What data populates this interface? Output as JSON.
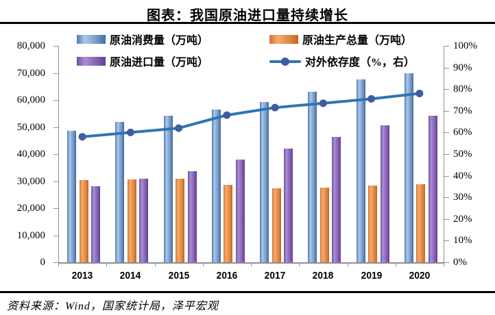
{
  "title": "图表：我国原油进口量持续增长",
  "source": "资料来源：Wind，国家统计局，泽平宏观",
  "legend": {
    "items": [
      {
        "label": "原油消费量（万吨）",
        "swatch": "blue"
      },
      {
        "label": "原油生产总量（万吨）",
        "swatch": "orange"
      },
      {
        "label": "原油进口量（万吨）",
        "swatch": "purple"
      },
      {
        "label": "对外依存度（%，右）",
        "swatch": "line"
      }
    ]
  },
  "colors": {
    "bar_blue": "#6d94c6",
    "bar_orange": "#e28a4a",
    "bar_purple": "#8763b4",
    "line": "#2e74b5",
    "line_marker": "#3d5e9e",
    "axis": "#8f8f8f",
    "text": "#000000"
  },
  "chart_data": {
    "type": "bar",
    "subtype": "grouped bars with secondary-axis line",
    "title": "图表：我国原油进口量持续增长",
    "categories": [
      "2013",
      "2014",
      "2015",
      "2016",
      "2017",
      "2018",
      "2019",
      "2020"
    ],
    "series": [
      {
        "name": "原油消费量（万吨）",
        "key": "consumption",
        "type": "bar",
        "axis": "left",
        "color": "#6d94c6",
        "color_key": "blue",
        "values": [
          48700,
          51800,
          54300,
          56400,
          59200,
          63000,
          67500,
          69900
        ]
      },
      {
        "name": "原油生产总量（万吨）",
        "key": "production",
        "type": "bar",
        "axis": "left",
        "color": "#e28a4a",
        "color_key": "orange",
        "values": [
          30400,
          30600,
          31000,
          28500,
          27300,
          27700,
          28300,
          28800
        ]
      },
      {
        "name": "原油进口量（万吨）",
        "key": "imports",
        "type": "bar",
        "axis": "left",
        "color": "#8763b4",
        "color_key": "purple",
        "values": [
          28200,
          30800,
          33600,
          38100,
          42000,
          46300,
          50600,
          54200
        ]
      },
      {
        "name": "对外依存度（%，右）",
        "key": "dependence",
        "type": "line",
        "axis": "right",
        "color": "#2e74b5",
        "color_key": "line",
        "values": [
          58,
          60,
          62,
          68,
          71.5,
          73.5,
          75.5,
          78
        ]
      }
    ],
    "y_left": {
      "min": 0,
      "max": 80000,
      "step": 10000,
      "ticks": [
        "80,000",
        "70,000",
        "60,000",
        "50,000",
        "40,000",
        "30,000",
        "20,000",
        "10,000",
        "0"
      ]
    },
    "y_right": {
      "min": 0,
      "max": 100,
      "step": 10,
      "ticks": [
        "100%",
        "90%",
        "80%",
        "70%",
        "60%",
        "50%",
        "40%",
        "30%",
        "20%",
        "10%",
        "0%"
      ]
    },
    "grid": false,
    "legend_position": "top"
  }
}
